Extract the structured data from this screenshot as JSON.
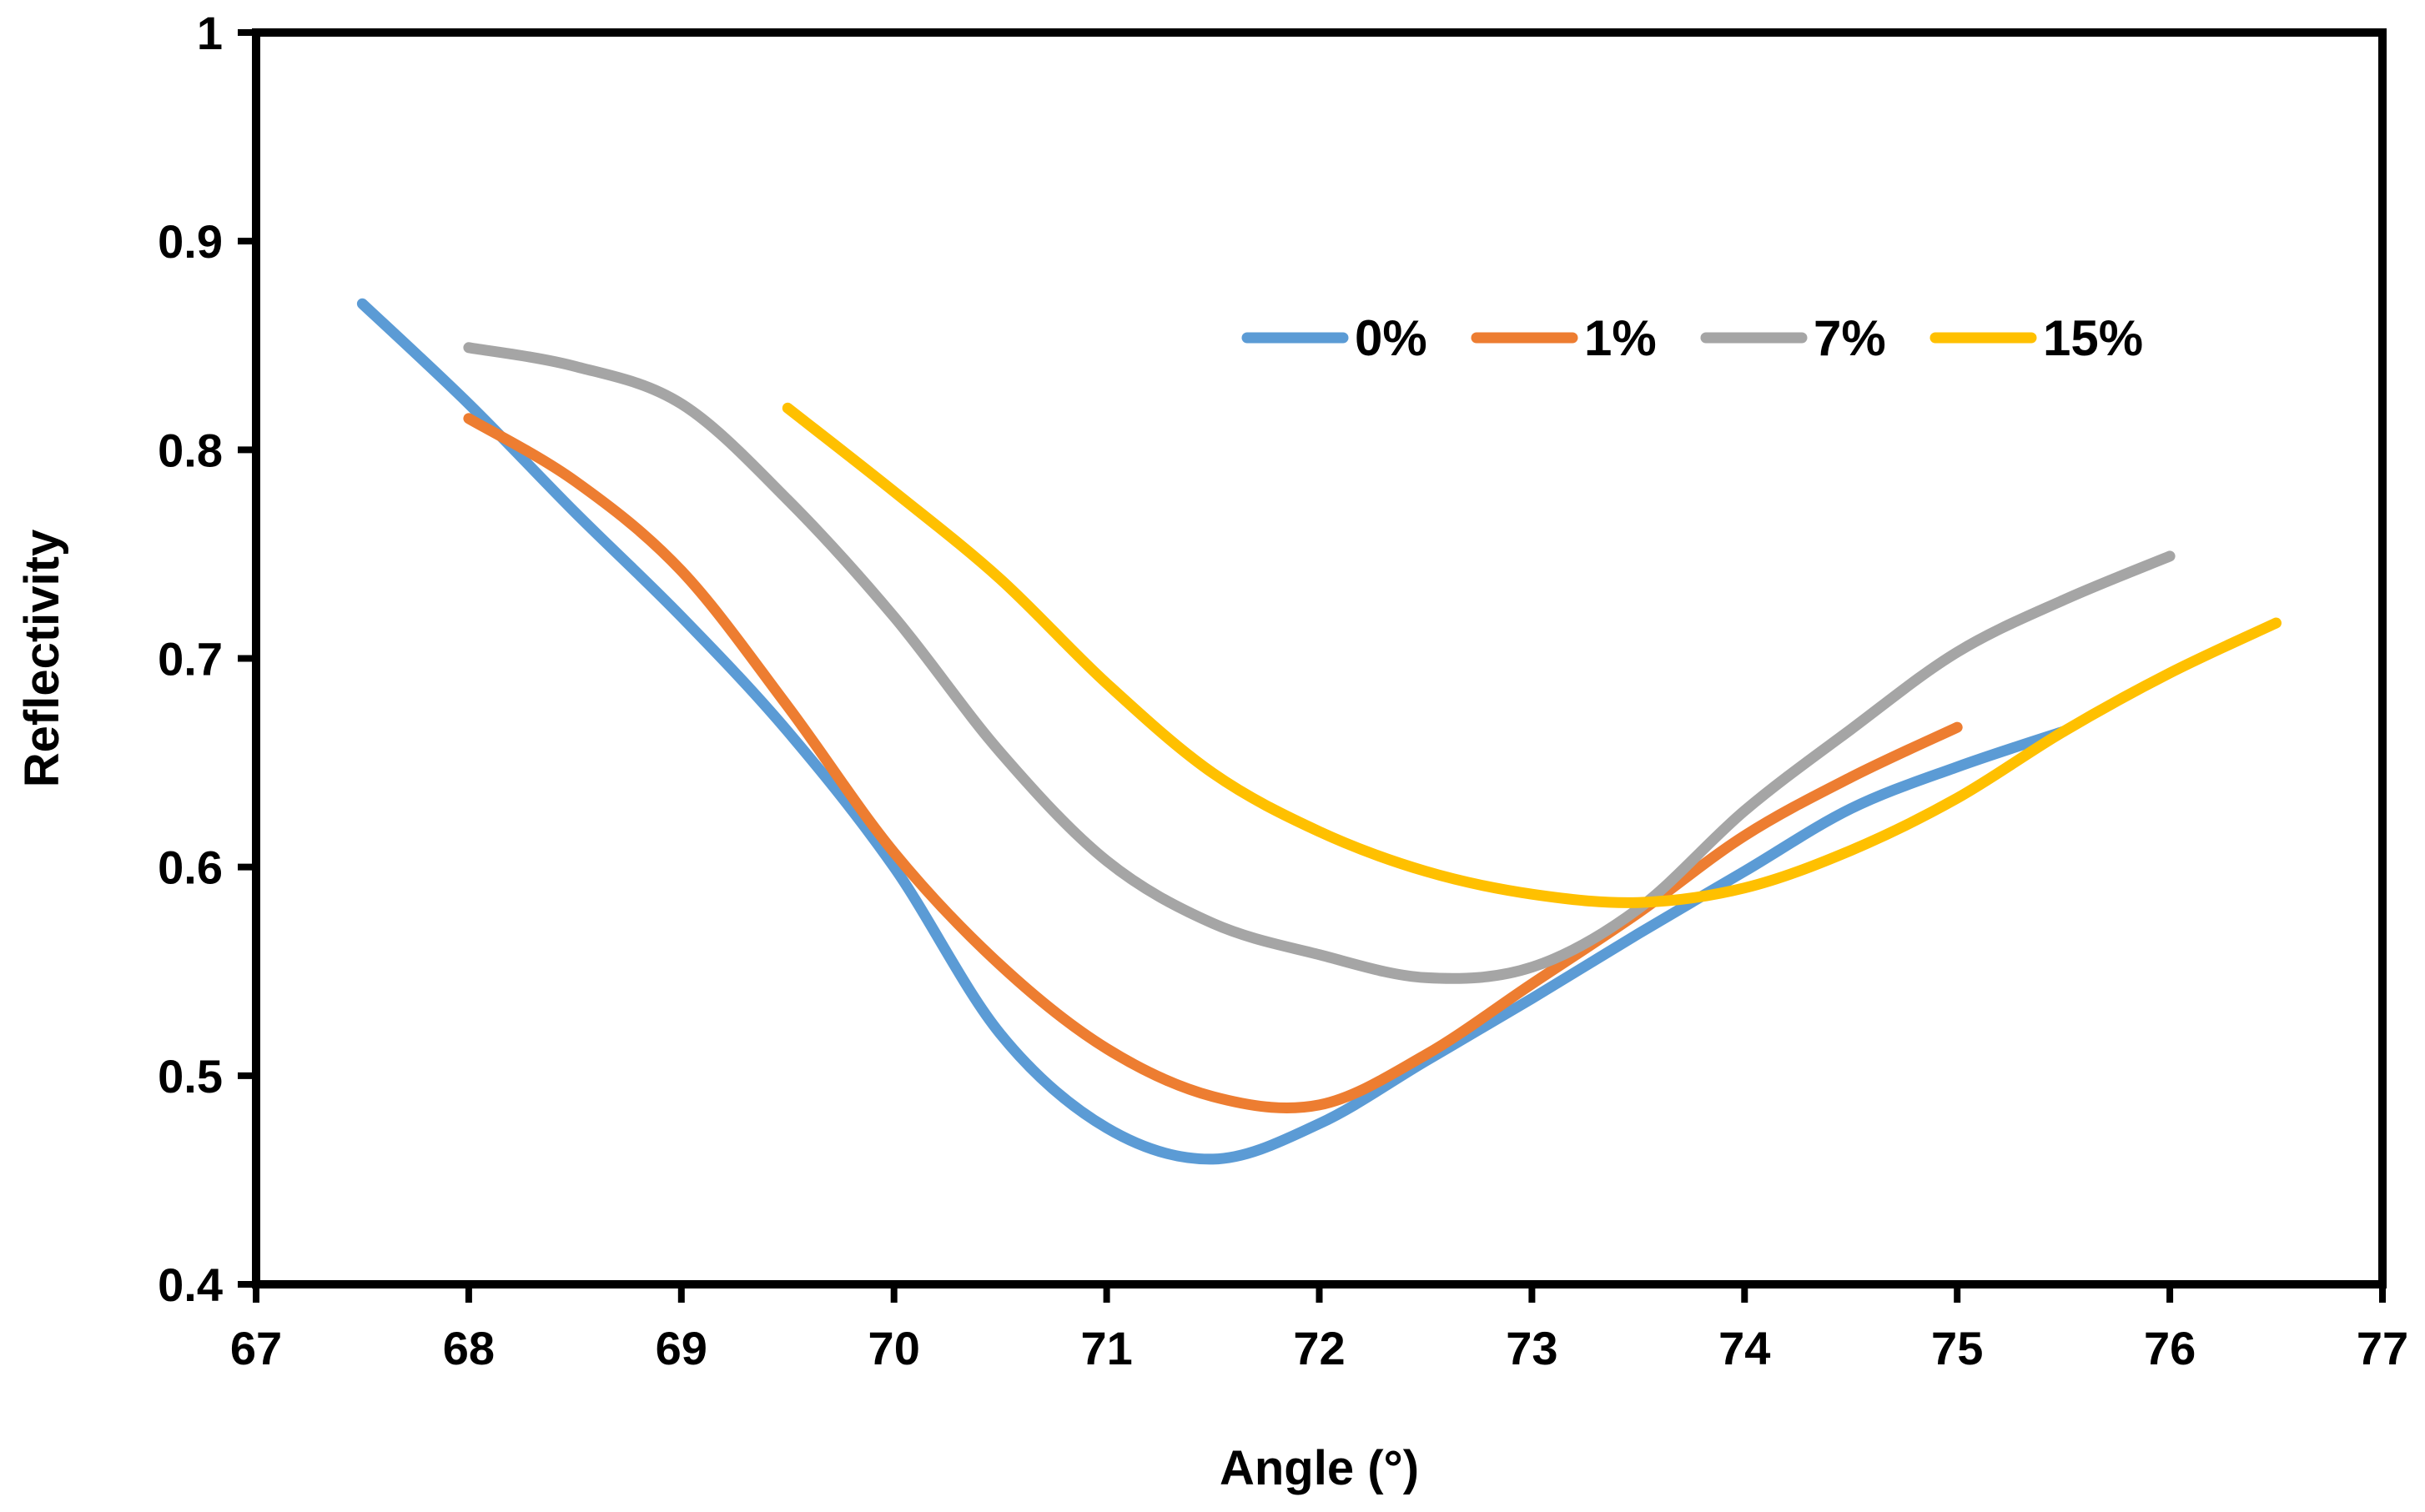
{
  "chart_data": {
    "type": "line",
    "title": "",
    "xlabel": "Angle (°)",
    "ylabel": "Reflectivity",
    "xlim": [
      67,
      77
    ],
    "ylim": [
      0.4,
      1.0
    ],
    "x_ticks": [
      "67",
      "68",
      "69",
      "70",
      "71",
      "72",
      "73",
      "74",
      "75",
      "76",
      "77"
    ],
    "y_ticks": [
      "0.4",
      "0.5",
      "0.6",
      "0.7",
      "0.8",
      "0.9",
      "1"
    ],
    "grid": false,
    "legend_position": "top-right",
    "series": [
      {
        "name": "0%",
        "color": "#5B9BD5",
        "x": [
          67.5,
          68.0,
          68.5,
          69.0,
          69.5,
          70.0,
          70.5,
          71.0,
          71.5,
          72.0,
          72.5,
          73.0,
          73.5,
          74.0,
          74.5,
          75.0,
          75.5
        ],
        "y": [
          0.87,
          0.822,
          0.77,
          0.72,
          0.665,
          0.6,
          0.52,
          0.475,
          0.46,
          0.477,
          0.507,
          0.537,
          0.568,
          0.598,
          0.628,
          0.648,
          0.665
        ]
      },
      {
        "name": "1%",
        "color": "#ED7D31",
        "x": [
          68.0,
          68.5,
          69.0,
          69.5,
          70.0,
          70.5,
          71.0,
          71.5,
          72.0,
          72.5,
          73.0,
          73.5,
          74.0,
          74.5,
          75.0
        ],
        "y": [
          0.815,
          0.785,
          0.742,
          0.677,
          0.607,
          0.553,
          0.513,
          0.49,
          0.486,
          0.51,
          0.544,
          0.578,
          0.615,
          0.643,
          0.667
        ]
      },
      {
        "name": "7%",
        "color": "#A5A5A5",
        "x": [
          68.0,
          68.5,
          69.0,
          69.5,
          70.0,
          70.5,
          71.0,
          71.5,
          72.0,
          72.5,
          73.0,
          73.5,
          74.0,
          74.5,
          75.0,
          75.5,
          76.0
        ],
        "y": [
          0.849,
          0.84,
          0.822,
          0.776,
          0.72,
          0.655,
          0.603,
          0.573,
          0.558,
          0.547,
          0.552,
          0.58,
          0.627,
          0.666,
          0.703,
          0.728,
          0.749
        ]
      },
      {
        "name": "15%",
        "color": "#FFC000",
        "x": [
          69.5,
          70.0,
          70.5,
          71.0,
          71.5,
          72.0,
          72.5,
          73.0,
          73.5,
          74.0,
          74.5,
          75.0,
          75.5,
          76.0,
          76.5
        ],
        "y": [
          0.82,
          0.78,
          0.738,
          0.688,
          0.645,
          0.617,
          0.598,
          0.587,
          0.583,
          0.59,
          0.608,
          0.633,
          0.665,
          0.693,
          0.717
        ]
      }
    ]
  }
}
